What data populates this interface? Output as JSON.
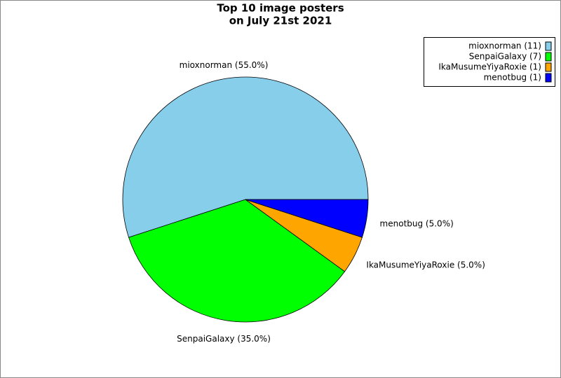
{
  "chart_data": {
    "type": "pie",
    "title": [
      "Top 10 image posters",
      "on July 21st 2021"
    ],
    "values": [
      55,
      35,
      5,
      5
    ],
    "value_labels": [
      "mioxnorman (55.0%)",
      "SenpaiGalaxy (35.0%)",
      "IkaMusumeYiyaRoxie (5.0%)",
      "menotbug (5.0%)"
    ],
    "legend_labels": [
      "mioxnorman (11)",
      "SenpaiGalaxy (7)",
      "IkaMusumeYiyaRoxie (1)",
      "menotbug (1)"
    ],
    "colors": [
      "#87ceeb",
      "#00ff00",
      "#ffa500",
      "#0000ff"
    ],
    "legend": "upper right"
  }
}
